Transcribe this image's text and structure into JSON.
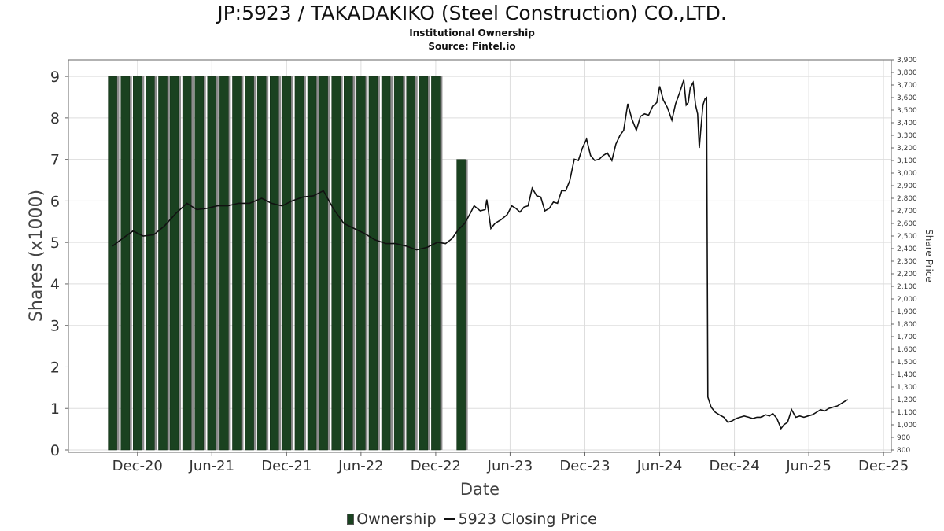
{
  "header": {
    "title": "JP:5923 / TAKADAKIKO (Steel Construction) CO.,LTD.",
    "subtitle": "Institutional Ownership",
    "source": "Source: Fintel.io"
  },
  "legend": {
    "ownership": "Ownership",
    "price": "5923 Closing Price"
  },
  "colors": {
    "bar": "#1a4220",
    "bar_shadow": "#8c8c8c",
    "line": "#111111",
    "grid": "#dddddd"
  },
  "chart_data": {
    "type": "bar",
    "title": "JP:5923 / TAKADAKIKO (Steel Construction) CO.,LTD.",
    "subtitle": "Institutional Ownership",
    "xlabel": "Date",
    "ylabel": "Shares (x1000)",
    "y2label": "Share Price",
    "xlim": [
      "2020-06-15",
      "2025-12-20"
    ],
    "ylim": [
      0,
      9.4
    ],
    "y2lim": [
      800,
      3900
    ],
    "x_ticks": [
      {
        "date": "2020-12-01",
        "label": "Dec-20"
      },
      {
        "date": "2021-06-01",
        "label": "Jun-21"
      },
      {
        "date": "2021-12-01",
        "label": "Dec-21"
      },
      {
        "date": "2022-06-01",
        "label": "Jun-22"
      },
      {
        "date": "2022-12-01",
        "label": "Dec-22"
      },
      {
        "date": "2023-06-01",
        "label": "Jun-23"
      },
      {
        "date": "2023-12-01",
        "label": "Dec-23"
      },
      {
        "date": "2024-06-01",
        "label": "Jun-24"
      },
      {
        "date": "2024-12-01",
        "label": "Dec-24"
      },
      {
        "date": "2025-06-01",
        "label": "Jun-25"
      },
      {
        "date": "2025-12-01",
        "label": "Dec-25"
      }
    ],
    "y_ticks": [
      0,
      1,
      2,
      3,
      4,
      5,
      6,
      7,
      8,
      9
    ],
    "y2_ticks": [
      "800",
      "900",
      "1,000",
      "1,100",
      "1,200",
      "1,300",
      "1,400",
      "1,500",
      "1,600",
      "1,700",
      "1,800",
      "1,900",
      "2,000",
      "2,100",
      "2,200",
      "2,300",
      "2,400",
      "2,500",
      "2,600",
      "2,700",
      "2,800",
      "2,900",
      "3,000",
      "3,100",
      "3,200",
      "3,300",
      "3,400",
      "3,500",
      "3,600",
      "3,700",
      "3,800",
      "3,900"
    ],
    "grid": true,
    "legend_position": "bottom",
    "series": [
      {
        "name": "Ownership",
        "type": "bar",
        "axis": "left",
        "points": [
          [
            "2020-10-01",
            9
          ],
          [
            "2020-11-01",
            9
          ],
          [
            "2020-12-01",
            9
          ],
          [
            "2021-01-01",
            9
          ],
          [
            "2021-02-01",
            9
          ],
          [
            "2021-03-01",
            9
          ],
          [
            "2021-04-01",
            9
          ],
          [
            "2021-05-01",
            9
          ],
          [
            "2021-06-01",
            9
          ],
          [
            "2021-07-01",
            9
          ],
          [
            "2021-08-01",
            9
          ],
          [
            "2021-09-01",
            9
          ],
          [
            "2021-10-01",
            9
          ],
          [
            "2021-11-01",
            9
          ],
          [
            "2021-12-01",
            9
          ],
          [
            "2022-01-01",
            9
          ],
          [
            "2022-02-01",
            9
          ],
          [
            "2022-03-01",
            9
          ],
          [
            "2022-04-01",
            9
          ],
          [
            "2022-05-01",
            9
          ],
          [
            "2022-06-01",
            9
          ],
          [
            "2022-07-01",
            9
          ],
          [
            "2022-08-01",
            9
          ],
          [
            "2022-09-01",
            9
          ],
          [
            "2022-10-01",
            9
          ],
          [
            "2022-11-01",
            9
          ],
          [
            "2022-12-01",
            9
          ],
          [
            "2023-02-01",
            7
          ]
        ]
      },
      {
        "name": "5923 Closing Price",
        "type": "line",
        "axis": "right",
        "points": [
          [
            "2020-10-01",
            2420
          ],
          [
            "2020-10-25",
            2480
          ],
          [
            "2020-11-20",
            2540
          ],
          [
            "2020-12-15",
            2500
          ],
          [
            "2021-01-10",
            2510
          ],
          [
            "2021-02-05",
            2580
          ],
          [
            "2021-03-05",
            2680
          ],
          [
            "2021-04-01",
            2760
          ],
          [
            "2021-04-25",
            2710
          ],
          [
            "2021-05-20",
            2720
          ],
          [
            "2021-06-15",
            2740
          ],
          [
            "2021-07-10",
            2740
          ],
          [
            "2021-08-05",
            2760
          ],
          [
            "2021-09-01",
            2760
          ],
          [
            "2021-10-01",
            2800
          ],
          [
            "2021-10-25",
            2760
          ],
          [
            "2021-11-20",
            2740
          ],
          [
            "2021-12-15",
            2780
          ],
          [
            "2022-01-10",
            2810
          ],
          [
            "2022-02-05",
            2820
          ],
          [
            "2022-03-01",
            2860
          ],
          [
            "2022-03-25",
            2720
          ],
          [
            "2022-04-20",
            2600
          ],
          [
            "2022-05-15",
            2560
          ],
          [
            "2022-06-10",
            2520
          ],
          [
            "2022-07-05",
            2470
          ],
          [
            "2022-08-01",
            2440
          ],
          [
            "2022-08-25",
            2440
          ],
          [
            "2022-09-20",
            2420
          ],
          [
            "2022-10-15",
            2390
          ],
          [
            "2022-11-10",
            2410
          ],
          [
            "2022-12-05",
            2450
          ],
          [
            "2022-12-25",
            2440
          ],
          [
            "2023-01-10",
            2480
          ],
          [
            "2023-01-25",
            2550
          ],
          [
            "2023-02-10",
            2600
          ],
          [
            "2023-02-25",
            2690
          ],
          [
            "2023-03-05",
            2740
          ],
          [
            "2023-03-20",
            2700
          ],
          [
            "2023-04-01",
            2710
          ],
          [
            "2023-04-05",
            2790
          ],
          [
            "2023-04-15",
            2560
          ],
          [
            "2023-04-25",
            2600
          ],
          [
            "2023-05-10",
            2630
          ],
          [
            "2023-05-25",
            2670
          ],
          [
            "2023-06-05",
            2740
          ],
          [
            "2023-06-15",
            2720
          ],
          [
            "2023-06-25",
            2690
          ],
          [
            "2023-07-05",
            2730
          ],
          [
            "2023-07-15",
            2740
          ],
          [
            "2023-07-25",
            2880
          ],
          [
            "2023-08-05",
            2820
          ],
          [
            "2023-08-15",
            2810
          ],
          [
            "2023-08-25",
            2700
          ],
          [
            "2023-09-05",
            2720
          ],
          [
            "2023-09-15",
            2770
          ],
          [
            "2023-09-25",
            2760
          ],
          [
            "2023-10-05",
            2860
          ],
          [
            "2023-10-15",
            2860
          ],
          [
            "2023-10-25",
            2940
          ],
          [
            "2023-11-05",
            3110
          ],
          [
            "2023-11-15",
            3100
          ],
          [
            "2023-11-25",
            3200
          ],
          [
            "2023-12-05",
            3270
          ],
          [
            "2023-12-15",
            3140
          ],
          [
            "2023-12-25",
            3100
          ],
          [
            "2024-01-05",
            3110
          ],
          [
            "2024-01-15",
            3140
          ],
          [
            "2024-01-25",
            3160
          ],
          [
            "2024-02-05",
            3100
          ],
          [
            "2024-02-15",
            3230
          ],
          [
            "2024-02-25",
            3300
          ],
          [
            "2024-03-05",
            3340
          ],
          [
            "2024-03-15",
            3550
          ],
          [
            "2024-03-25",
            3430
          ],
          [
            "2024-04-05",
            3340
          ],
          [
            "2024-04-15",
            3450
          ],
          [
            "2024-04-25",
            3470
          ],
          [
            "2024-05-05",
            3460
          ],
          [
            "2024-05-15",
            3530
          ],
          [
            "2024-05-25",
            3560
          ],
          [
            "2024-06-01",
            3690
          ],
          [
            "2024-06-10",
            3580
          ],
          [
            "2024-06-20",
            3520
          ],
          [
            "2024-07-01",
            3420
          ],
          [
            "2024-07-10",
            3550
          ],
          [
            "2024-07-20",
            3640
          ],
          [
            "2024-07-30",
            3740
          ],
          [
            "2024-08-05",
            3540
          ],
          [
            "2024-08-10",
            3560
          ],
          [
            "2024-08-15",
            3680
          ],
          [
            "2024-08-22",
            3720
          ],
          [
            "2024-08-28",
            3540
          ],
          [
            "2024-09-02",
            3470
          ],
          [
            "2024-09-06",
            3200
          ],
          [
            "2024-09-10",
            3360
          ],
          [
            "2024-09-15",
            3540
          ],
          [
            "2024-09-20",
            3590
          ],
          [
            "2024-09-24",
            3600
          ],
          [
            "2024-09-27",
            1220
          ],
          [
            "2024-10-05",
            1140
          ],
          [
            "2024-10-15",
            1100
          ],
          [
            "2024-10-25",
            1080
          ],
          [
            "2024-11-05",
            1060
          ],
          [
            "2024-11-15",
            1020
          ],
          [
            "2024-11-25",
            1030
          ],
          [
            "2024-12-05",
            1050
          ],
          [
            "2024-12-15",
            1060
          ],
          [
            "2024-12-25",
            1070
          ],
          [
            "2025-01-05",
            1060
          ],
          [
            "2025-01-15",
            1050
          ],
          [
            "2025-01-25",
            1060
          ],
          [
            "2025-02-05",
            1060
          ],
          [
            "2025-02-15",
            1080
          ],
          [
            "2025-02-25",
            1070
          ],
          [
            "2025-03-05",
            1090
          ],
          [
            "2025-03-15",
            1050
          ],
          [
            "2025-03-25",
            970
          ],
          [
            "2025-04-01",
            1000
          ],
          [
            "2025-04-10",
            1020
          ],
          [
            "2025-04-20",
            1120
          ],
          [
            "2025-04-30",
            1060
          ],
          [
            "2025-05-10",
            1070
          ],
          [
            "2025-05-20",
            1060
          ],
          [
            "2025-05-30",
            1070
          ],
          [
            "2025-06-10",
            1080
          ],
          [
            "2025-06-20",
            1100
          ],
          [
            "2025-06-30",
            1120
          ],
          [
            "2025-07-10",
            1110
          ],
          [
            "2025-07-20",
            1130
          ],
          [
            "2025-07-30",
            1140
          ],
          [
            "2025-08-10",
            1150
          ],
          [
            "2025-08-20",
            1170
          ],
          [
            "2025-08-30",
            1190
          ],
          [
            "2025-09-05",
            1200
          ]
        ]
      }
    ]
  }
}
